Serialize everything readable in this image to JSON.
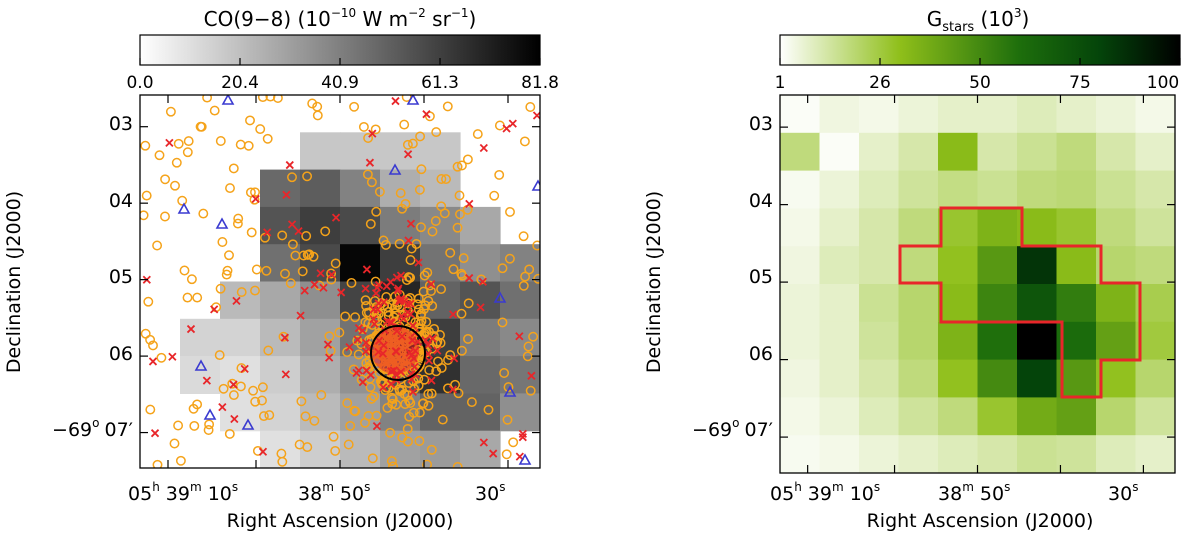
{
  "chart_data": [
    {
      "type": "heatmap",
      "title": "CO(9−8) (10⁻¹⁰ W m⁻² sr⁻¹)",
      "title_parts": {
        "species": "CO(9−8)",
        "open": "(10",
        "exp1": "−10",
        "mid1": " W m",
        "exp2": "−2",
        "mid2": " sr",
        "exp3": "−1",
        "close": ")"
      },
      "colormap": "grey (white to black)",
      "colorbar_ticks": [
        "0.0",
        "20.4",
        "40.9",
        "61.3",
        "81.8"
      ],
      "colorbar_range": [
        0.0,
        81.8
      ],
      "xlabel": "Right Ascension (J2000)",
      "ylabel": "Declination (J2000)",
      "xticks": [
        {
          "h": "05",
          "hu": "h",
          "m": "39",
          "mu": "m",
          "s": "10",
          "su": "s"
        },
        {
          "h": "",
          "hu": "",
          "m": "38",
          "mu": "m",
          "s": "50",
          "su": "s"
        },
        {
          "h": "",
          "hu": "",
          "m": "",
          "mu": "",
          "s": "30",
          "su": "s"
        }
      ],
      "yticks": [
        "03",
        "04",
        "05",
        "06",
        "−69° 07′"
      ],
      "ytick_parts": {
        "deg": "−69",
        "deg_sym": "o",
        "min": "07′"
      },
      "grid": [
        [
          0,
          0,
          0,
          0,
          0,
          0,
          0,
          0,
          0,
          0
        ],
        [
          0,
          0,
          0,
          0,
          18,
          18,
          18,
          18,
          0,
          0
        ],
        [
          0,
          0,
          0,
          48,
          52,
          40,
          26,
          22,
          0,
          0
        ],
        [
          0,
          0,
          0,
          55,
          62,
          58,
          42,
          38,
          28,
          0
        ],
        [
          0,
          0,
          0,
          46,
          58,
          80,
          62,
          45,
          36,
          40
        ],
        [
          0,
          0,
          22,
          28,
          36,
          60,
          70,
          50,
          55,
          46
        ],
        [
          0,
          14,
          14,
          22,
          30,
          45,
          72,
          62,
          42,
          38
        ],
        [
          0,
          12,
          10,
          16,
          26,
          35,
          55,
          66,
          48,
          44
        ],
        [
          0,
          0,
          10,
          14,
          22,
          30,
          40,
          50,
          50,
          36
        ],
        [
          0,
          0,
          0,
          10,
          16,
          22,
          30,
          32,
          28,
          0
        ]
      ],
      "annotations": [
        "orange circles: YSO candidates",
        "red crosses: stars",
        "blue triangles: sources",
        "black circle: central cluster"
      ],
      "colors": {
        "circle": "#f5a31a",
        "cross": "#e8262a",
        "triangle": "#3a3ad0",
        "axis": "#000000"
      }
    },
    {
      "type": "heatmap",
      "title": "G_stars (10³)",
      "title_parts": {
        "G": "G",
        "sub": "stars",
        "open": " (10",
        "exp": "3",
        "close": ")"
      },
      "colormap": "white-green-black",
      "colorbar_ticks": [
        "1",
        "26",
        "50",
        "75",
        "100"
      ],
      "colorbar_range": [
        1,
        100
      ],
      "xlabel": "Right Ascension (J2000)",
      "ylabel": "Declination (J2000)",
      "xticks": [
        {
          "h": "05",
          "hu": "h",
          "m": "39",
          "mu": "m",
          "s": "10",
          "su": "s"
        },
        {
          "h": "",
          "hu": "",
          "m": "38",
          "mu": "m",
          "s": "50",
          "su": "s"
        },
        {
          "h": "",
          "hu": "",
          "m": "",
          "mu": "",
          "s": "30",
          "su": "s"
        }
      ],
      "yticks": [
        "03",
        "04",
        "05",
        "06",
        "−69° 07′"
      ],
      "ytick_parts": {
        "deg": "−69",
        "deg_sym": "o",
        "min": "07′"
      },
      "grid": [
        [
          2,
          5,
          4,
          6,
          8,
          8,
          10,
          8,
          6,
          4
        ],
        [
          18,
          2,
          8,
          12,
          32,
          12,
          15,
          18,
          12,
          8
        ],
        [
          3,
          6,
          10,
          14,
          17,
          15,
          18,
          19,
          15,
          12
        ],
        [
          4,
          8,
          12,
          18,
          28,
          35,
          32,
          28,
          18,
          14
        ],
        [
          5,
          10,
          12,
          18,
          30,
          45,
          85,
          32,
          20,
          18
        ],
        [
          6,
          8,
          15,
          20,
          32,
          52,
          72,
          55,
          35,
          24
        ],
        [
          6,
          8,
          14,
          20,
          35,
          60,
          100,
          62,
          42,
          26
        ],
        [
          5,
          8,
          12,
          18,
          30,
          50,
          80,
          45,
          30,
          20
        ],
        [
          4,
          6,
          10,
          14,
          18,
          28,
          38,
          42,
          20,
          14
        ],
        [
          3,
          4,
          6,
          8,
          10,
          12,
          15,
          14,
          10,
          8
        ]
      ],
      "annotations": [
        "red outline: region boundary"
      ],
      "colors": {
        "outline": "#e8262a",
        "axis": "#000000"
      }
    }
  ]
}
